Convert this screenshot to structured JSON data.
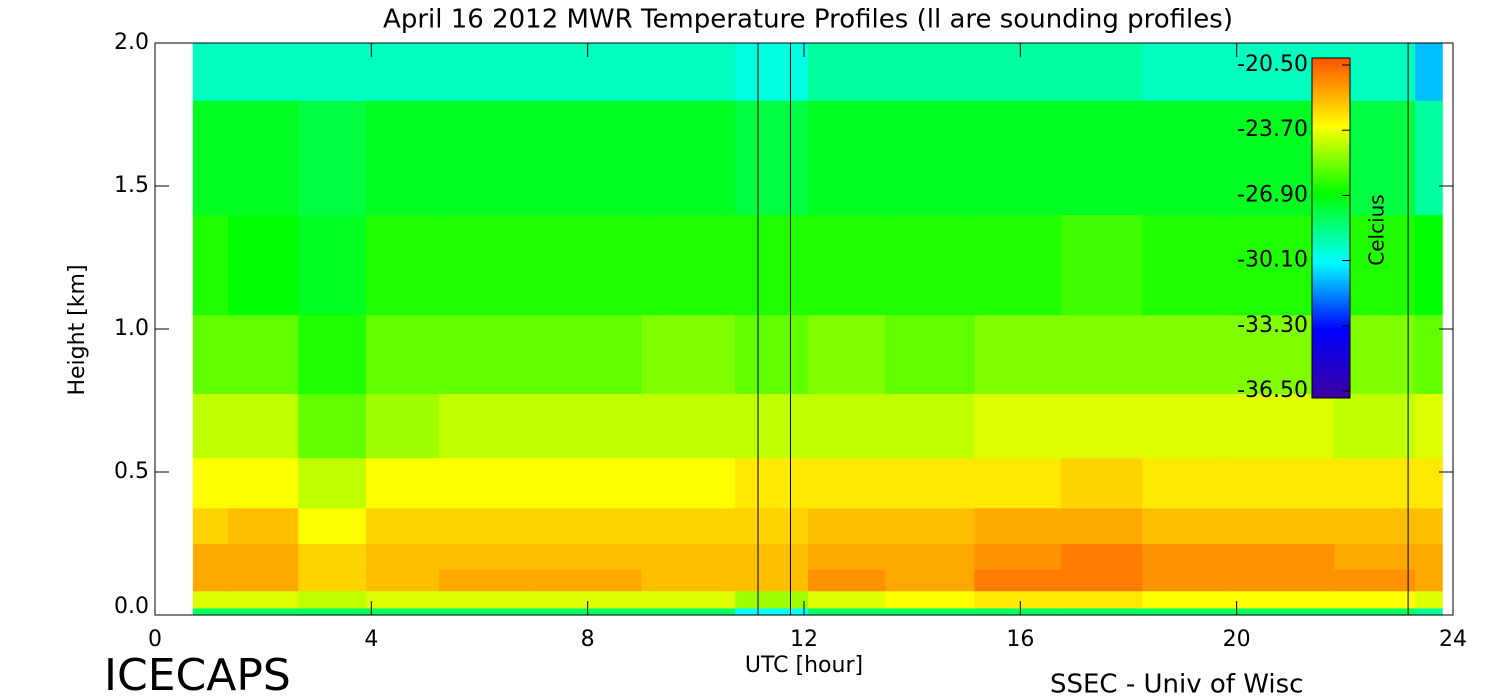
{
  "chart_data": {
    "type": "heatmap",
    "title": "April 16 2012 MWR Temperature Profiles (ll are sounding profiles)",
    "x_label": "UTC [hour]",
    "y_label": "Height [km]",
    "colorbar_label": "Celcius",
    "footer_left": "ICECAPS",
    "footer_right": "SSEC - Univ of Wisc",
    "xlim": [
      0,
      24
    ],
    "xticks": [
      0,
      4,
      8,
      12,
      16,
      20,
      24
    ],
    "ylim": [
      0,
      2
    ],
    "yticks": [
      {
        "value": 0,
        "label": "0.0"
      },
      {
        "value": 0.5,
        "label": "0.5"
      },
      {
        "value": 1,
        "label": "1.0"
      },
      {
        "value": 1.5,
        "label": "1.5"
      },
      {
        "value": 2,
        "label": "2.0"
      }
    ],
    "zlim": [
      -36.5,
      -20.5
    ],
    "zticks": [
      {
        "value": -20.5,
        "label": "-20.50"
      },
      {
        "value": -23.7,
        "label": "-23.70"
      },
      {
        "value": -26.9,
        "label": "-26.90"
      },
      {
        "value": -30.1,
        "label": "-30.10"
      },
      {
        "value": -33.3,
        "label": "-33.30"
      },
      {
        "value": -36.5,
        "label": "-36.50"
      }
    ],
    "colorscale": [
      "#3c00a0",
      "#0000ff",
      "#00ffff",
      "#00ff00",
      "#ffff00",
      "#ff5000"
    ],
    "sounding_times": [
      11.15,
      11.75,
      23.17
    ],
    "x": [
      0.7,
      2,
      3.3,
      4.5,
      6,
      8,
      10,
      11.45,
      12.7,
      14.3,
      16,
      17.5,
      19,
      20.8,
      22.8,
      23.8
    ],
    "y": [
      0,
      0.05,
      0.12,
      0.2,
      0.3,
      0.45,
      0.65,
      0.9,
      1.2,
      1.6,
      2.0
    ],
    "z": [
      [
        -28,
        -28,
        -28,
        -28,
        -28,
        -28,
        -28,
        -30,
        -28,
        -28,
        -28,
        -28,
        -28,
        -28,
        -28,
        -29
      ],
      [
        -24,
        -24,
        -24.5,
        -24,
        -24,
        -24,
        -24,
        -25,
        -24,
        -23.8,
        -23.5,
        -23.5,
        -23.6,
        -23.6,
        -23.8,
        -24
      ],
      [
        -22.3,
        -22,
        -22.8,
        -22.5,
        -22.3,
        -22.3,
        -22.4,
        -22.5,
        -21.8,
        -22,
        -21.5,
        -21.4,
        -21.6,
        -21.6,
        -21.9,
        -22
      ],
      [
        -22.2,
        -22.1,
        -23,
        -22.5,
        -22.4,
        -22.4,
        -22.5,
        -22.5,
        -22,
        -22.2,
        -21.7,
        -21.5,
        -21.8,
        -21.8,
        -22.2,
        -22
      ],
      [
        -22.8,
        -22.7,
        -23.6,
        -23,
        -22.9,
        -22.9,
        -22.9,
        -23,
        -22.5,
        -22.7,
        -22.3,
        -22.2,
        -22.4,
        -22.4,
        -22.7,
        -22.5
      ],
      [
        -23.6,
        -23.6,
        -24.6,
        -23.8,
        -23.6,
        -23.6,
        -23.6,
        -23.5,
        -23.4,
        -23.5,
        -23.2,
        -23,
        -23.3,
        -23.3,
        -23.4,
        -23.3
      ],
      [
        -24.6,
        -24.7,
        -25.6,
        -24.8,
        -24.6,
        -24.6,
        -24.5,
        -24.5,
        -24.4,
        -24.5,
        -24.2,
        -24,
        -24.3,
        -24.3,
        -24.4,
        -24.3
      ],
      [
        -25.6,
        -25.8,
        -26.6,
        -25.8,
        -25.6,
        -25.6,
        -25.5,
        -25.6,
        -25.5,
        -25.6,
        -25.3,
        -25.1,
        -25.4,
        -25.4,
        -25.5,
        -25.7
      ],
      [
        -26.4,
        -26.8,
        -27.3,
        -26.7,
        -26.6,
        -26.6,
        -26.5,
        -26.6,
        -26.6,
        -26.7,
        -26.4,
        -26.3,
        -26.5,
        -26.6,
        -26.6,
        -27
      ],
      [
        -27.3,
        -27.5,
        -27.6,
        -27.4,
        -27.4,
        -27.4,
        -27.3,
        -27.6,
        -27.4,
        -27.5,
        -27.5,
        -27.5,
        -27.5,
        -27.5,
        -27.6,
        -29
      ],
      [
        -29.3,
        -29.4,
        -29.5,
        -29.3,
        -29.3,
        -29.2,
        -29.1,
        -29.6,
        -29,
        -29,
        -29,
        -29,
        -29.2,
        -29.2,
        -29.3,
        -31
      ]
    ]
  }
}
